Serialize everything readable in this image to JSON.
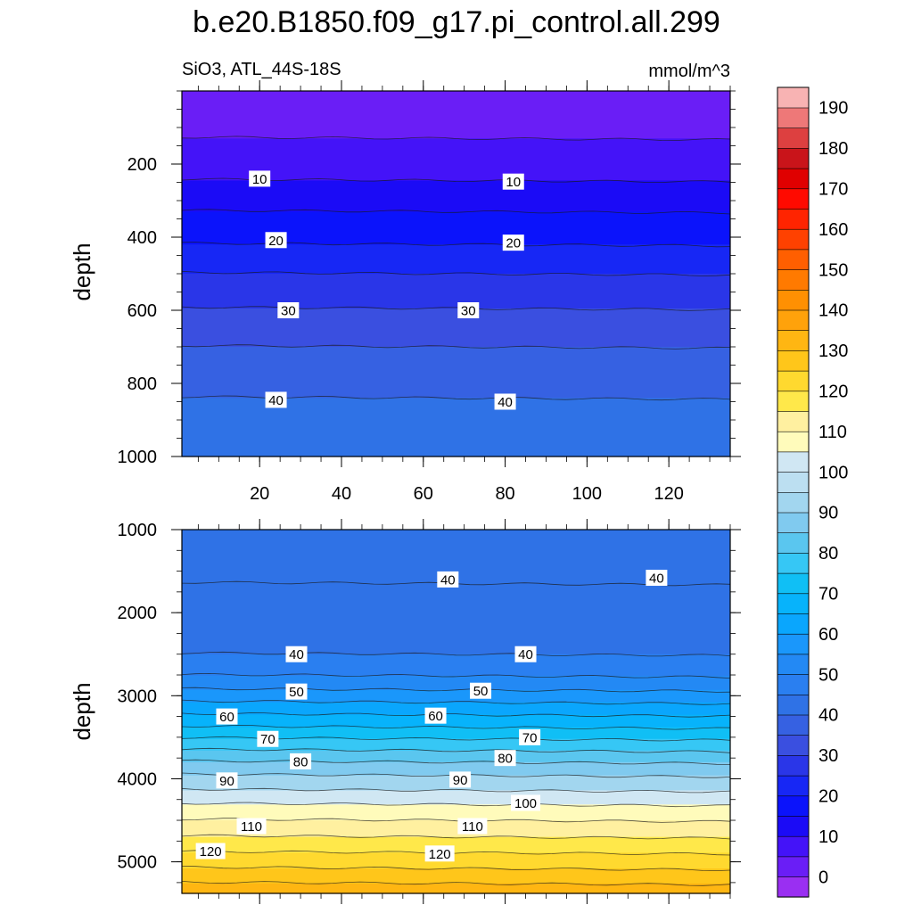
{
  "title": "b.e20.B1850.f09_g17.pi_control.all.299",
  "subtitle_left": "SiO3, ATL_44S-18S",
  "subtitle_right": "mmol/m^3",
  "chart_data": [
    {
      "type": "contour",
      "panel": "upper",
      "ylabel": "depth",
      "xlabel": "",
      "xlim": [
        1,
        135
      ],
      "ylim": [
        1000,
        0
      ],
      "xticks": [
        20,
        40,
        60,
        80,
        100,
        120
      ],
      "yticks": [
        200,
        400,
        600,
        800,
        1000
      ],
      "bands": [
        {
          "from": 0,
          "to": 130,
          "level": 0
        },
        {
          "from": 130,
          "to": 245,
          "level": 5
        },
        {
          "from": 245,
          "to": 330,
          "level": 10
        },
        {
          "from": 330,
          "to": 420,
          "level": 15
        },
        {
          "from": 420,
          "to": 500,
          "level": 20
        },
        {
          "from": 500,
          "to": 595,
          "level": 25
        },
        {
          "from": 595,
          "to": 700,
          "level": 30
        },
        {
          "from": 700,
          "to": 840,
          "level": 35
        },
        {
          "from": 840,
          "to": 1000,
          "level": 40
        }
      ],
      "contour_labels": [
        {
          "value": "10",
          "x": 20,
          "depth": 240
        },
        {
          "value": "10",
          "x": 82,
          "depth": 248
        },
        {
          "value": "20",
          "x": 24,
          "depth": 408
        },
        {
          "value": "20",
          "x": 82,
          "depth": 415
        },
        {
          "value": "30",
          "x": 27,
          "depth": 600
        },
        {
          "value": "30",
          "x": 71,
          "depth": 600
        },
        {
          "value": "40",
          "x": 24,
          "depth": 845
        },
        {
          "value": "40",
          "x": 80,
          "depth": 850
        }
      ]
    },
    {
      "type": "contour",
      "panel": "lower",
      "ylabel": "depth",
      "xlabel": "",
      "xlim": [
        1,
        135
      ],
      "ylim": [
        5380,
        1000
      ],
      "xticks": [
        20,
        40,
        60,
        80,
        100,
        120
      ],
      "yticks": [
        1000,
        2000,
        3000,
        4000,
        5000
      ],
      "bands": [
        {
          "from": 1000,
          "to": 1650,
          "level": 40
        },
        {
          "from": 1650,
          "to": 2500,
          "level": 40
        },
        {
          "from": 2500,
          "to": 2760,
          "level": 45
        },
        {
          "from": 2760,
          "to": 2930,
          "level": 50
        },
        {
          "from": 2930,
          "to": 3080,
          "level": 55
        },
        {
          "from": 3080,
          "to": 3230,
          "level": 60
        },
        {
          "from": 3230,
          "to": 3380,
          "level": 65
        },
        {
          "from": 3380,
          "to": 3520,
          "level": 70
        },
        {
          "from": 3520,
          "to": 3660,
          "level": 75
        },
        {
          "from": 3660,
          "to": 3800,
          "level": 80
        },
        {
          "from": 3800,
          "to": 3960,
          "level": 85
        },
        {
          "from": 3960,
          "to": 4140,
          "level": 90
        },
        {
          "from": 4140,
          "to": 4310,
          "level": 100
        },
        {
          "from": 4310,
          "to": 4500,
          "level": 105
        },
        {
          "from": 4500,
          "to": 4700,
          "level": 110
        },
        {
          "from": 4700,
          "to": 4890,
          "level": 115
        },
        {
          "from": 4890,
          "to": 5080,
          "level": 120
        },
        {
          "from": 5080,
          "to": 5260,
          "level": 125
        },
        {
          "from": 5260,
          "to": 5380,
          "level": 130
        }
      ],
      "contour_labels": [
        {
          "value": "40",
          "x": 66,
          "depth": 1600
        },
        {
          "value": "40",
          "x": 117,
          "depth": 1580
        },
        {
          "value": "40",
          "x": 29,
          "depth": 2500
        },
        {
          "value": "40",
          "x": 85,
          "depth": 2500
        },
        {
          "value": "50",
          "x": 29,
          "depth": 2950
        },
        {
          "value": "50",
          "x": 74,
          "depth": 2940
        },
        {
          "value": "60",
          "x": 12,
          "depth": 3250
        },
        {
          "value": "60",
          "x": 63,
          "depth": 3240
        },
        {
          "value": "70",
          "x": 22,
          "depth": 3520
        },
        {
          "value": "70",
          "x": 86,
          "depth": 3500
        },
        {
          "value": "80",
          "x": 30,
          "depth": 3790
        },
        {
          "value": "80",
          "x": 80,
          "depth": 3750
        },
        {
          "value": "90",
          "x": 12,
          "depth": 4020
        },
        {
          "value": "90",
          "x": 69,
          "depth": 4010
        },
        {
          "value": "100",
          "x": 85,
          "depth": 4290
        },
        {
          "value": "110",
          "x": 18,
          "depth": 4570
        },
        {
          "value": "110",
          "x": 72,
          "depth": 4570
        },
        {
          "value": "120",
          "x": 8,
          "depth": 4870
        },
        {
          "value": "120",
          "x": 64,
          "depth": 4900
        }
      ]
    }
  ],
  "colorbar": {
    "tick_labels": [
      "0",
      "10",
      "20",
      "30",
      "40",
      "50",
      "60",
      "70",
      "80",
      "90",
      "100",
      "110",
      "120",
      "130",
      "140",
      "150",
      "160",
      "170",
      "180",
      "190"
    ],
    "colors": [
      "#9a2ff2",
      "#6a1ef6",
      "#4413f8",
      "#1b0bf6",
      "#0b13fb",
      "#1727f5",
      "#2a36e8",
      "#3a4fe0",
      "#3661e2",
      "#2f72e6",
      "#2a7ff0",
      "#2389f4",
      "#1a97fb",
      "#0aa6fd",
      "#07b3fb",
      "#10bff5",
      "#36c7f5",
      "#5ac6ef",
      "#80caef",
      "#a2d6ef",
      "#bcdff1",
      "#d0e7f3",
      "#fffbbb",
      "#fff0a0",
      "#ffe84a",
      "#ffd92f",
      "#ffc61a",
      "#ffb612",
      "#ffa20b",
      "#ff9002",
      "#ff7a00",
      "#ff5f00",
      "#ff4100",
      "#ff2400",
      "#ff0a00",
      "#e00000",
      "#c9141a",
      "#dd4040",
      "#ee7878",
      "#f8b3b3"
    ]
  }
}
